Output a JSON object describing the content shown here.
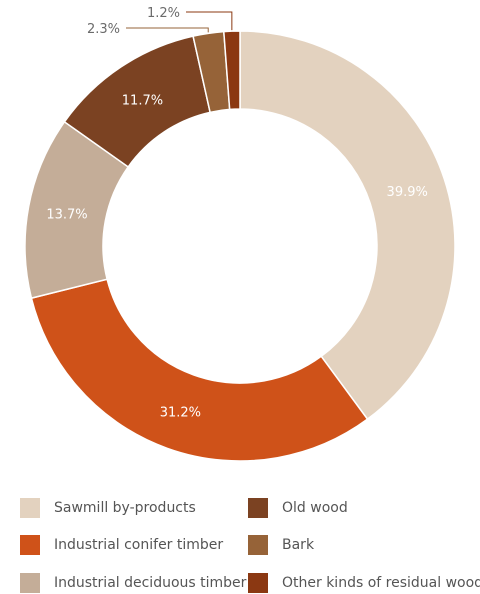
{
  "chart_data": {
    "type": "pie",
    "variant": "donut",
    "title": "",
    "categories": [
      "Sawmill by-products",
      "Industrial conifer timber",
      "Industrial deciduous timber",
      "Old wood",
      "Bark",
      "Other kinds of residual wood"
    ],
    "values": [
      39.9,
      31.2,
      13.7,
      11.7,
      2.3,
      1.2
    ],
    "labels": [
      "39.9%",
      "31.2%",
      "13.7%",
      "11.7%",
      "2.3%",
      "1.2%"
    ],
    "colors": [
      "#e3d2bf",
      "#cf5219",
      "#c4ad98",
      "#7b4222",
      "#966338",
      "#8b3812"
    ],
    "legend_position": "bottom"
  },
  "legend": {
    "items": [
      {
        "label": "Sawmill by-products",
        "color": "#e3d2bf"
      },
      {
        "label": "Industrial conifer timber",
        "color": "#cf5219"
      },
      {
        "label": "Industrial deciduous timber",
        "color": "#c4ad98"
      },
      {
        "label": "Old wood",
        "color": "#7b4222"
      },
      {
        "label": "Bark",
        "color": "#966338"
      },
      {
        "label": "Other kinds of residual wood",
        "color": "#8b3812"
      }
    ]
  }
}
